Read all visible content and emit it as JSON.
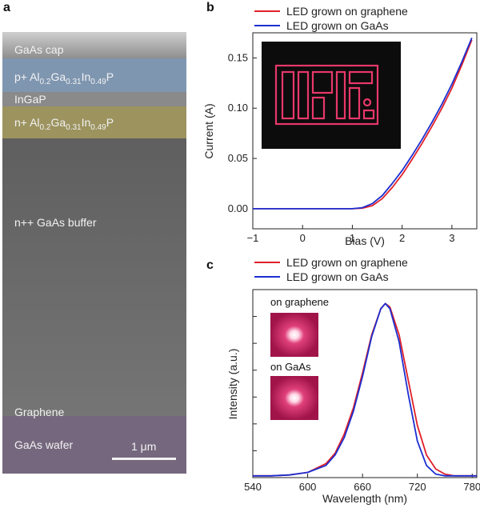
{
  "panel_labels": {
    "a": "a",
    "b": "b",
    "c": "c"
  },
  "sem": {
    "layers": [
      {
        "label": "GaAs cap",
        "color": "#9a9a9a"
      },
      {
        "label": "p+ Al0.2Ga0.31In0.49P",
        "color": "#7f96b0"
      },
      {
        "label": "InGaP",
        "color": "#8d8d8d"
      },
      {
        "label": "n+ Al0.2Ga0.31In0.49P",
        "color": "#9c935f"
      },
      {
        "label": "n++ GaAs buffer",
        "color": "#6f6f6f"
      },
      {
        "label": "Graphene",
        "color": "#6c6c6c"
      },
      {
        "label": "GaAs wafer",
        "color": "#7a6d82"
      }
    ],
    "scale_bar": "1 μm"
  },
  "chart_data": [
    {
      "type": "line",
      "panel": "b",
      "xlabel": "Bias (V)",
      "ylabel": "Current (A)",
      "xlim": [
        -1,
        3.5
      ],
      "ylim": [
        -0.02,
        0.175
      ],
      "x_ticks": [
        -1,
        0,
        1,
        2,
        3
      ],
      "x_tick_labels": [
        "−1",
        "0",
        "1",
        "2",
        "3"
      ],
      "y_ticks": [
        0,
        0.05,
        0.1,
        0.15
      ],
      "y_tick_labels": [
        "0.00",
        "0.05",
        "0.10",
        "0.15"
      ],
      "legend_position": "top",
      "series": [
        {
          "name": "LED grown on graphene",
          "color": "#e0202a",
          "x": [
            -1,
            0,
            1,
            1.2,
            1.4,
            1.6,
            1.8,
            2.0,
            2.2,
            2.4,
            2.6,
            2.8,
            3.0,
            3.2,
            3.4
          ],
          "y": [
            0,
            0,
            0,
            0.0005,
            0.003,
            0.01,
            0.021,
            0.034,
            0.049,
            0.065,
            0.082,
            0.1,
            0.12,
            0.143,
            0.168
          ]
        },
        {
          "name": "LED grown on GaAs",
          "color": "#1c2fd0",
          "x": [
            -1,
            0,
            1,
            1.2,
            1.4,
            1.6,
            1.8,
            2.0,
            2.2,
            2.4,
            2.6,
            2.8,
            3.0,
            3.2,
            3.4
          ],
          "y": [
            0,
            0,
            0,
            0.001,
            0.005,
            0.013,
            0.025,
            0.038,
            0.053,
            0.069,
            0.086,
            0.104,
            0.124,
            0.146,
            0.17
          ]
        }
      ]
    },
    {
      "type": "line",
      "panel": "c",
      "xlabel": "Wavelength (nm)",
      "ylabel": "Intensity (a.u.)",
      "xlim": [
        540,
        785
      ],
      "ylim": [
        0,
        1.08
      ],
      "x_ticks": [
        540,
        600,
        660,
        720,
        780
      ],
      "x_tick_labels": [
        "540",
        "600",
        "660",
        "720",
        "780"
      ],
      "legend_position": "top",
      "series": [
        {
          "name": "LED grown on graphene",
          "color": "#e0202a",
          "x": [
            540,
            560,
            580,
            600,
            620,
            630,
            640,
            650,
            660,
            670,
            680,
            685,
            690,
            700,
            710,
            720,
            730,
            740,
            750,
            760,
            770,
            785
          ],
          "y": [
            0.01,
            0.01,
            0.015,
            0.03,
            0.08,
            0.14,
            0.25,
            0.4,
            0.6,
            0.82,
            0.97,
            1.0,
            0.98,
            0.82,
            0.56,
            0.3,
            0.13,
            0.05,
            0.02,
            0.01,
            0.01,
            0.01
          ]
        },
        {
          "name": "LED grown on GaAs",
          "color": "#1c2fd0",
          "x": [
            540,
            560,
            580,
            600,
            620,
            630,
            640,
            650,
            660,
            670,
            680,
            685,
            690,
            700,
            710,
            720,
            730,
            740,
            750,
            760,
            770,
            785
          ],
          "y": [
            0.01,
            0.01,
            0.015,
            0.03,
            0.07,
            0.13,
            0.23,
            0.38,
            0.58,
            0.81,
            0.97,
            1.0,
            0.97,
            0.78,
            0.48,
            0.21,
            0.07,
            0.02,
            0.01,
            0.01,
            0.01,
            0.01
          ]
        }
      ]
    }
  ],
  "insets": {
    "b_photo": "LED array emission photo",
    "c_top_label": "on graphene",
    "c_bottom_label": "on GaAs"
  }
}
